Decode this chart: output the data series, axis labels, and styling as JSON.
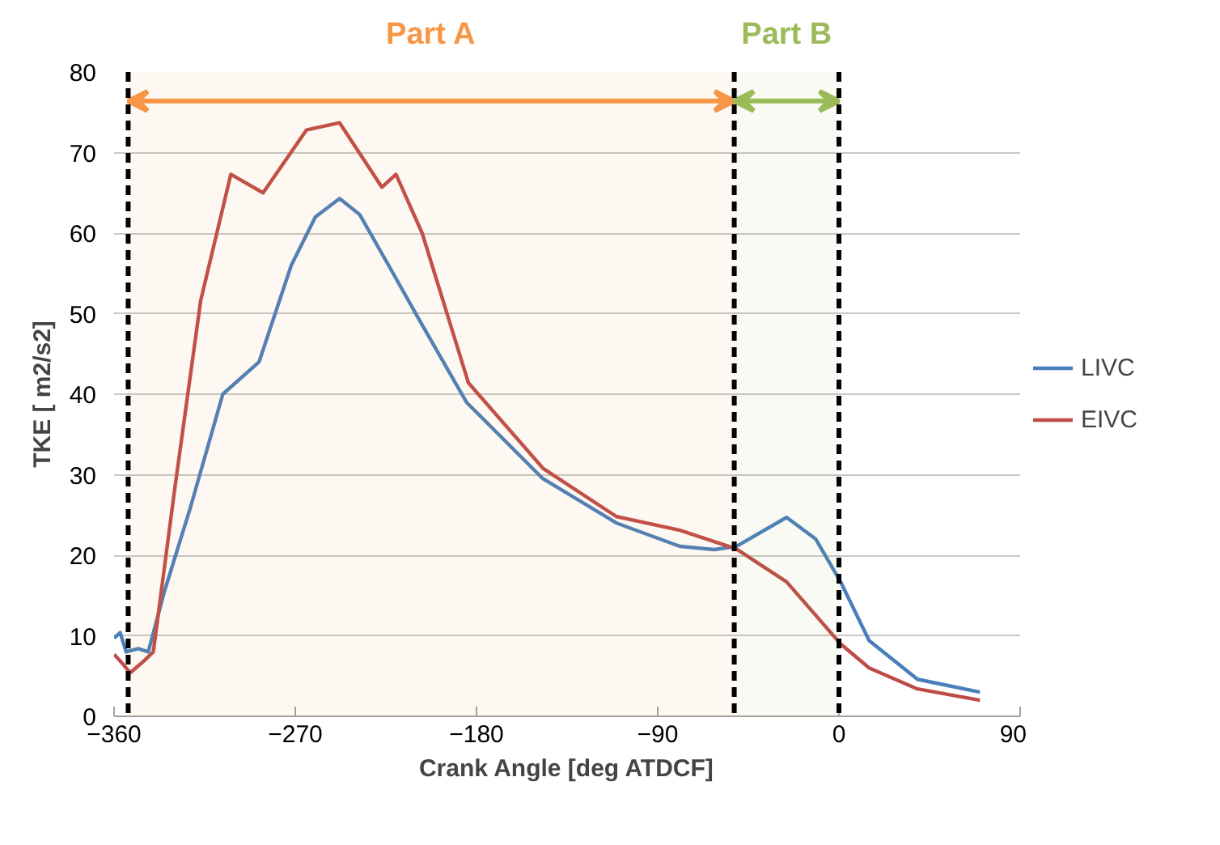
{
  "chart_data": {
    "type": "line",
    "xlabel": "Crank Angle [deg ATDCF]",
    "ylabel": "TKE [ m2/s2]",
    "xlim": [
      -360,
      90
    ],
    "xticks": [
      -360,
      -270,
      -180,
      -90,
      0,
      90
    ],
    "ylim": [
      0,
      80
    ],
    "yticks": [
      0,
      10,
      20,
      30,
      40,
      50,
      60,
      70,
      80
    ],
    "grid": "y",
    "legend": "right",
    "line_style": "solid",
    "marker": "none",
    "series": [
      {
        "name": "LIVC",
        "color": "#4a7ebb",
        "x": [
          -360,
          -357,
          -354,
          -348,
          -343,
          -335,
          -322,
          -306,
          -288,
          -272,
          -260,
          -248,
          -238,
          -223,
          -207,
          -185,
          -147,
          -110.5,
          -79,
          -62,
          -51,
          -26,
          -11.5,
          0.8,
          15,
          39,
          70
        ],
        "values": [
          9.7,
          10.4,
          8,
          8.4,
          8,
          15.5,
          26,
          40,
          44,
          56,
          62,
          64.3,
          62.3,
          55.7,
          48.6,
          39,
          29.5,
          24,
          21.1,
          20.7,
          21.1,
          24.7,
          22,
          16.7,
          9.4,
          4.6,
          3
        ]
      },
      {
        "name": "EIVC",
        "color": "#be4b48",
        "x": [
          -360,
          -356,
          -352,
          -345.5,
          -340.5,
          -330,
          -317,
          -302,
          -286,
          -264.5,
          -248,
          -227,
          -220,
          -207,
          -184,
          -147,
          -110.5,
          -79,
          -51,
          -26,
          0.8,
          15,
          39,
          70
        ],
        "values": [
          7.7,
          6.6,
          5.4,
          6.8,
          8,
          28,
          51.6,
          67.3,
          65,
          72.8,
          73.7,
          65.7,
          67.3,
          60,
          41.4,
          30.8,
          24.8,
          23.1,
          20.8,
          16.7,
          9,
          6,
          3.4,
          2
        ]
      }
    ],
    "ref_lines": [
      {
        "axis": "x",
        "value": -353,
        "color": "#000000",
        "line_style": "dashed"
      },
      {
        "axis": "x",
        "value": -52,
        "color": "#000000",
        "line_style": "dashed"
      },
      {
        "axis": "x",
        "value": 0,
        "color": "#000000",
        "line_style": "dashed"
      }
    ],
    "bands": [
      {
        "axis": "x",
        "from": -353,
        "to": -52,
        "label": "Part A",
        "color": "#f79646"
      },
      {
        "axis": "x",
        "from": -52,
        "to": 0,
        "label": "Part B",
        "color": "#9bbb59"
      }
    ]
  }
}
